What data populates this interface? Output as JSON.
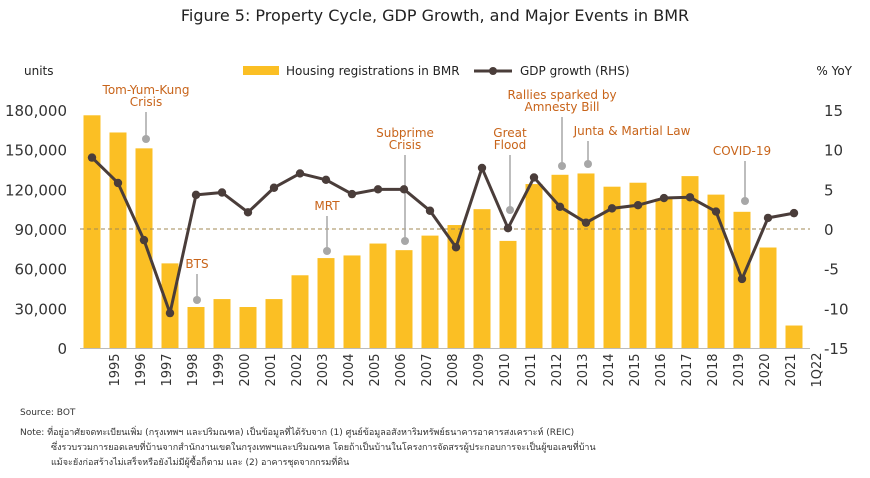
{
  "title": "Figure 5: Property Cycle, GDP Growth, and Major Events in BMR",
  "source": "Source:  BOT",
  "note": {
    "label": "Note:",
    "lines": [
      "ที่อยู่อาศัยจดทะเบียนเพิ่ม (กรุงเทพฯ และปริมณฑล) เป็นข้อมูลที่ได้รับจาก (1) ศูนย์ข้อมูลอสังหาริมทรัพย์ธนาคารอาคารสงเคราะห์ (REIC)",
      "ซึ่งรวบรวมการยอดเลขที่บ้านจากสำนักงานเขตในกรุงเทพฯและปริมณฑล โดยถ้าเป็นบ้านในโครงการจัดสรรผู้ประกอบการจะเป็นผู้ขอเลขที่บ้าน",
      "แม้จะยังก่อสร้างไม่เสร็จหรือยังไม่มีผู้ซื้อก็ตาม และ (2) อาคารชุดจากกรมที่ดิน"
    ]
  },
  "chart_data": {
    "type": "bar+line",
    "left_unit": "units",
    "right_unit": "% YoY",
    "categories": [
      "1995",
      "1996",
      "1997",
      "1998",
      "1999",
      "2000",
      "2001",
      "2002",
      "2003",
      "2004",
      "2005",
      "2006",
      "2007",
      "2008",
      "2009",
      "2010",
      "2011",
      "2012",
      "2013",
      "2014",
      "2015",
      "2016",
      "2017",
      "2018",
      "2019",
      "2020",
      "2021",
      "1Q22"
    ],
    "series": [
      {
        "name": "Housing registrations in BMR",
        "type": "bar",
        "axis": "left",
        "color": "#fbbf24",
        "values": [
          176000,
          163000,
          151000,
          64000,
          31000,
          37000,
          31000,
          37000,
          55000,
          68000,
          70000,
          79000,
          74000,
          85000,
          93000,
          105000,
          81000,
          124000,
          131000,
          132000,
          122000,
          125000,
          113000,
          130000,
          116000,
          103000,
          76000,
          17000
        ]
      },
      {
        "name": "GDP growth (RHS)",
        "type": "line",
        "axis": "right",
        "color": "#4a3d3a",
        "values": [
          9.0,
          5.8,
          -1.4,
          -10.6,
          4.3,
          4.6,
          2.1,
          5.2,
          7.0,
          6.2,
          4.4,
          5.0,
          5.0,
          2.3,
          -2.3,
          7.7,
          0.1,
          6.5,
          2.8,
          0.8,
          2.6,
          3.0,
          3.9,
          4.0,
          2.2,
          -6.3,
          1.4,
          2.0
        ]
      }
    ],
    "left_axis": {
      "min": 0,
      "max": 180000,
      "ticks": [
        "0",
        "30,000",
        "60,000",
        "90,000",
        "120,000",
        "150,000",
        "180,000"
      ]
    },
    "right_axis": {
      "min": -15,
      "max": 15,
      "ticks": [
        "-15",
        "-10",
        "-5",
        "0",
        "5",
        "10",
        "15"
      ]
    },
    "zero_line": "dashed at GDP growth = 0",
    "grid": false,
    "legend": "top-center",
    "annotation_color": "#c8641a",
    "annotations": [
      {
        "lines": [
          "Tom-Yum-Kung",
          "Crisis"
        ],
        "category": "1997"
      },
      {
        "lines": [
          "BTS"
        ],
        "category": "1999"
      },
      {
        "lines": [
          "MRT"
        ],
        "category": "2004"
      },
      {
        "lines": [
          "Subprime",
          "Crisis"
        ],
        "category": "2007"
      },
      {
        "lines": [
          "Great",
          "Flood"
        ],
        "category": "2011"
      },
      {
        "lines": [
          "Rallies sparked by",
          "Amnesty Bill"
        ],
        "category": "2013"
      },
      {
        "lines": [
          "Junta & Martial Law"
        ],
        "category": "2014"
      },
      {
        "lines": [
          "COVID-19"
        ],
        "category": "2020"
      }
    ]
  }
}
